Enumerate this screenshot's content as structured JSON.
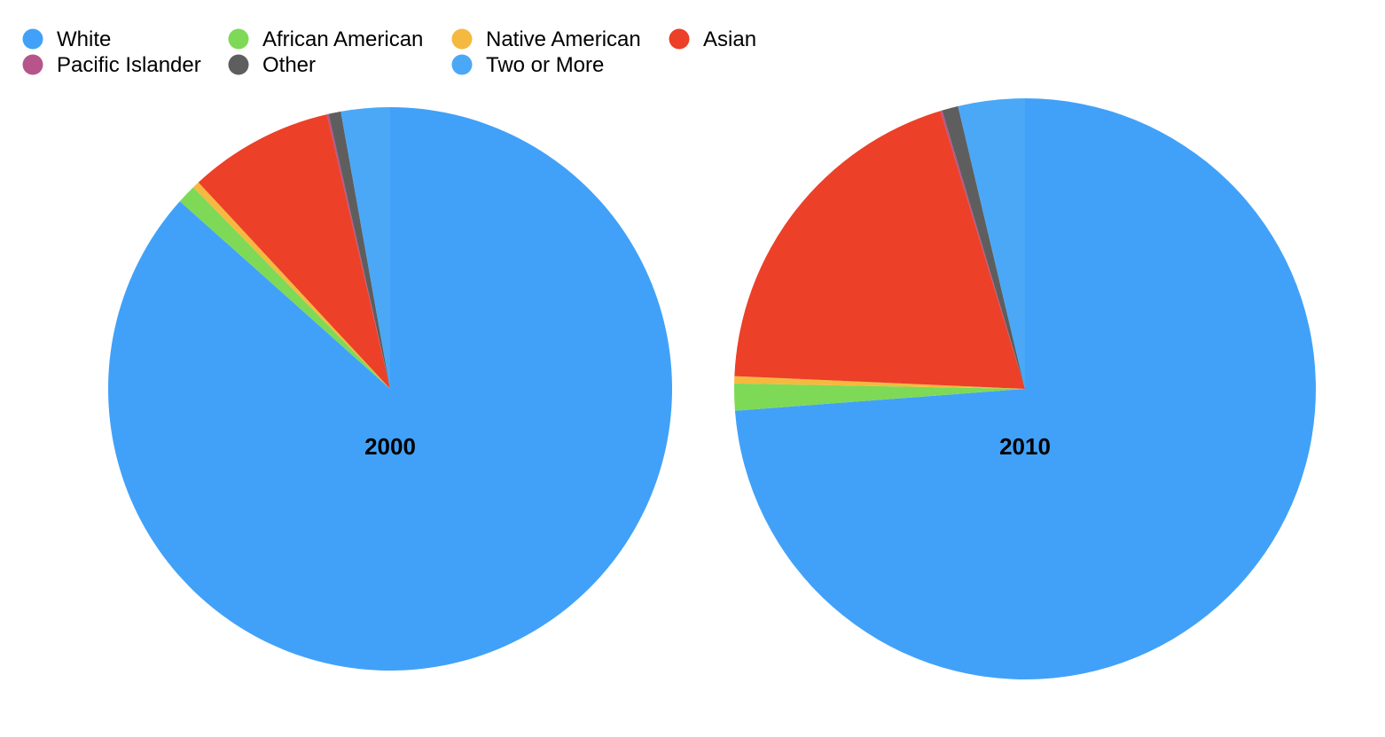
{
  "chart_data": [
    {
      "type": "pie",
      "label": "2000",
      "categories": [
        "White",
        "African American",
        "Native American",
        "Asian",
        "Pacific Islander",
        "Other",
        "Two or More"
      ],
      "values": [
        86.6,
        1.1,
        0.4,
        8.3,
        0.1,
        0.7,
        2.8
      ],
      "colors": [
        "#41a1f8",
        "#7ed957",
        "#f5b93f",
        "#ec4028",
        "#b5558b",
        "#5e5e5e",
        "#4aa8f7"
      ]
    },
    {
      "type": "pie",
      "label": "2010",
      "categories": [
        "White",
        "African American",
        "Native American",
        "Asian",
        "Pacific Islander",
        "Other",
        "Two or More"
      ],
      "values": [
        73.8,
        1.5,
        0.4,
        19.6,
        0.1,
        0.9,
        3.7
      ],
      "colors": [
        "#41a1f8",
        "#7ed957",
        "#f5b93f",
        "#ec4028",
        "#b5558b",
        "#5e5e5e",
        "#4aa8f7"
      ]
    }
  ],
  "legend": {
    "placement": "top-left",
    "items": [
      {
        "label": "White",
        "color": "#41a1f8"
      },
      {
        "label": "African American",
        "color": "#7ed957"
      },
      {
        "label": "Native American",
        "color": "#f5b93f"
      },
      {
        "label": "Asian",
        "color": "#ec4028"
      },
      {
        "label": "Pacific Islander",
        "color": "#b5558b"
      },
      {
        "label": "Other",
        "color": "#5e5e5e"
      },
      {
        "label": "Two or More",
        "color": "#4aa8f7"
      }
    ]
  }
}
